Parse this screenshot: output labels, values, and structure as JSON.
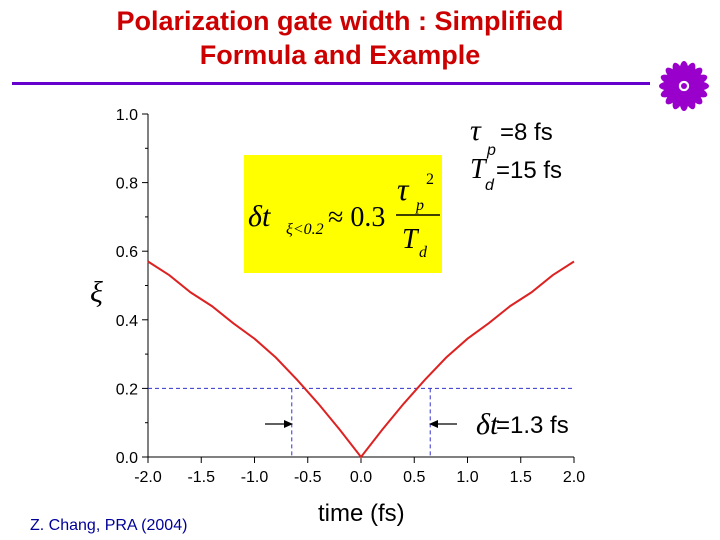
{
  "slide": {
    "title_line1": "Polarization gate width : Simplified",
    "title_line2": "Formula and Example",
    "citation": "Z. Chang, PRA (2004)",
    "colors": {
      "title": "#cc0000",
      "rule": "#6600cc",
      "logo": "#9900cc",
      "citation": "#000099"
    }
  },
  "chart_data": {
    "type": "line",
    "xlabel": "time (fs)",
    "ylabel": "ξ",
    "xlim": [
      -2.0,
      2.0
    ],
    "ylim": [
      0.0,
      1.0
    ],
    "x_ticks": [
      "-2.0",
      "-1.5",
      "-1.0",
      "-0.5",
      "0.0",
      "0.5",
      "1.0",
      "1.5",
      "2.0"
    ],
    "y_ticks": [
      "0.0",
      "0.2",
      "0.4",
      "0.6",
      "0.8",
      "1.0"
    ],
    "series": [
      {
        "color": "#dd2222",
        "x": [
          -2.0,
          -1.8,
          -1.6,
          -1.4,
          -1.2,
          -1.0,
          -0.8,
          -0.6,
          -0.4,
          -0.2,
          0.0,
          0.2,
          0.4,
          0.6,
          0.8,
          1.0,
          1.2,
          1.4,
          1.6,
          1.8,
          2.0
        ],
        "y": [
          0.57,
          0.53,
          0.48,
          0.44,
          0.39,
          0.345,
          0.29,
          0.225,
          0.155,
          0.08,
          0.0,
          0.08,
          0.155,
          0.225,
          0.29,
          0.345,
          0.39,
          0.44,
          0.48,
          0.53,
          0.57
        ]
      }
    ],
    "reference_lines": {
      "y": 0.2,
      "x": [
        -0.65,
        0.65
      ],
      "color": "#3333cc"
    },
    "annotations": {
      "tau_p": "=8 fs",
      "t_d": "=15 fs",
      "gate_width": "=1.3 fs"
    },
    "formula": {
      "lhs": "δt",
      "subscript": "ξ<0.2",
      "approx": "≈ 0.3",
      "numerator": "τ",
      "numerator_sub": "p",
      "numerator_exp": "2",
      "denominator": "T",
      "denominator_sub": "d",
      "box_color": "#ffff00"
    },
    "grid": false
  }
}
